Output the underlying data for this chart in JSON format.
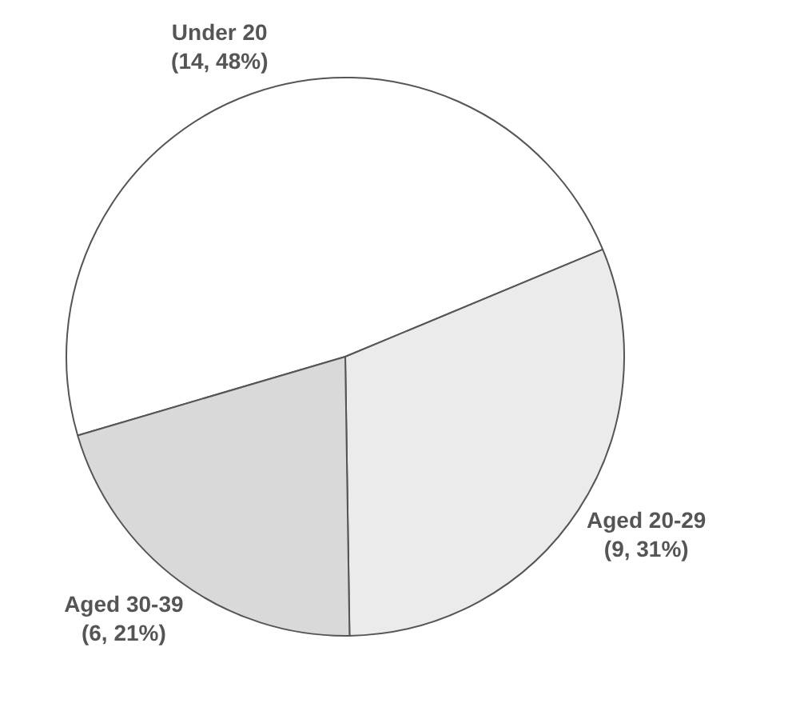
{
  "chart_data": {
    "type": "pie",
    "categories": [
      "Under 20",
      "Aged 20-29",
      "Aged 30-39"
    ],
    "values": [
      14,
      9,
      6
    ],
    "value_labels": [
      "(14, 48%)",
      "(9, 31%)",
      "(6, 21%)"
    ],
    "colors": [
      "#ffffff",
      "#ebebeb",
      "#d9d9d9"
    ],
    "legend": false
  }
}
